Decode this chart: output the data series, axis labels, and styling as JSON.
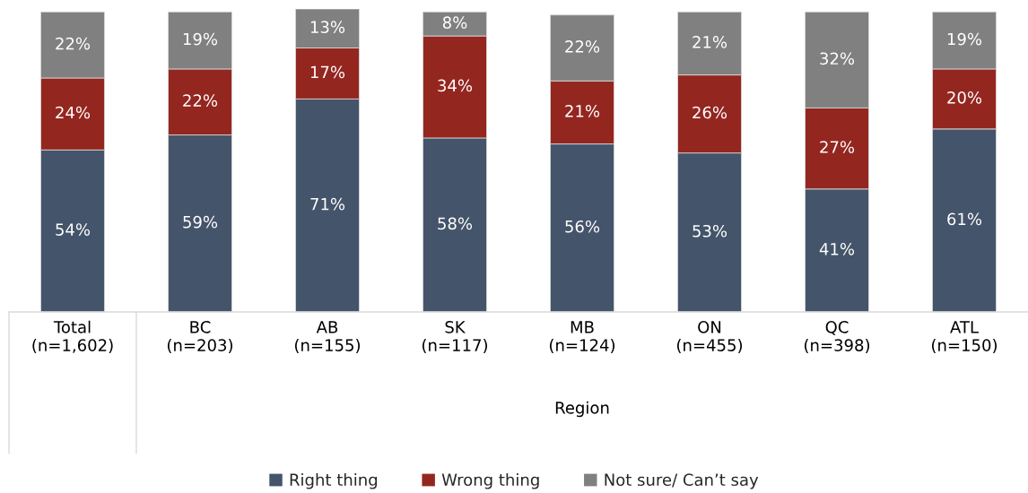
{
  "chart_data": {
    "type": "bar",
    "stacked": true,
    "categories": [
      "Total\n(n=1,602)",
      "BC\n(n=203)",
      "AB\n(n=155)",
      "SK\n(n=117)",
      "MB\n(n=124)",
      "ON\n(n=455)",
      "QC\n(n=398)",
      "ATL\n(n=150)"
    ],
    "xlabel": "Region",
    "ylim": [
      0,
      101
    ],
    "tick_labels": "x",
    "legend": "bottom",
    "series": [
      {
        "name": "Right thing",
        "color": "#44546a",
        "values": [
          54,
          59,
          71,
          58,
          56,
          53,
          41,
          61
        ],
        "value_labels": [
          "54%",
          "59%",
          "71%",
          "58%",
          "56%",
          "53%",
          "41%",
          "61%"
        ]
      },
      {
        "name": "Wrong thing",
        "color": "#942620",
        "values": [
          24,
          22,
          17,
          34,
          21,
          26,
          27,
          20
        ],
        "value_labels": [
          "24%",
          "22%",
          "17%",
          "34%",
          "21%",
          "26%",
          "27%",
          "20%"
        ]
      },
      {
        "name": "Not sure/ Can’t say",
        "color": "#808080",
        "values": [
          22,
          19,
          13,
          8,
          22,
          21,
          32,
          19
        ],
        "value_labels": [
          "22%",
          "19%",
          "13%",
          "8%",
          "22%",
          "21%",
          "32%",
          "19%"
        ]
      }
    ]
  }
}
